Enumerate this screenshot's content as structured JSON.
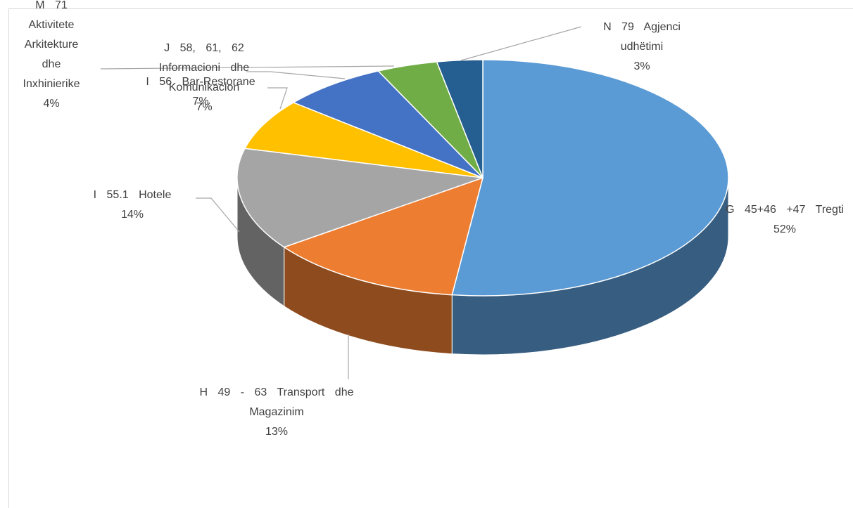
{
  "chart_data": {
    "type": "pie",
    "categories": [
      "G 45+46 +47 Tregti",
      "H 49 - 63 Transport dhe Magazinim",
      "I 55.1 Hotele",
      "I 56 Bar-Restorane",
      "J 58, 61, 62 Informacioni dhe Komunikacion",
      "M 71 Aktivitete Arkitekture dhe Inxhinierike",
      "N 79 Agjenci udhëtimi"
    ],
    "values": [
      52,
      13,
      14,
      7,
      7,
      4,
      3
    ],
    "value_labels": [
      "52%",
      "13%",
      "14%",
      "7%",
      "7%",
      "4%",
      "3%"
    ],
    "colors": [
      "#5b9bd5",
      "#ed7d31",
      "#a5a5a5",
      "#ffc000",
      "#4472c4",
      "#70ad47",
      "#255e91"
    ]
  }
}
